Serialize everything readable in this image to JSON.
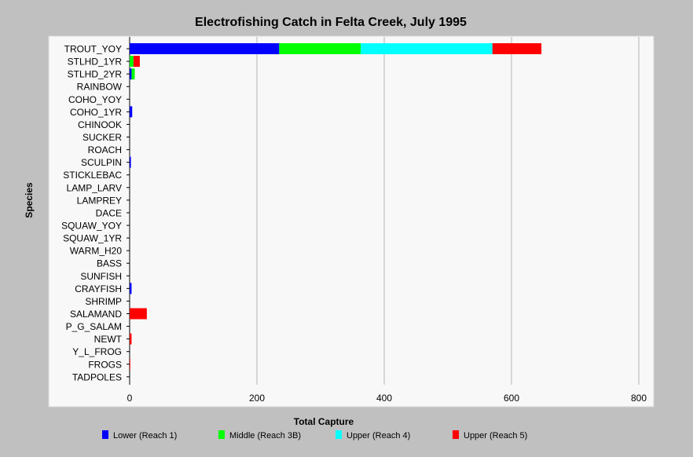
{
  "chart_data": {
    "type": "bar",
    "orientation": "horizontal",
    "stacked": true,
    "title": "Electrofishing Catch in Felta Creek, July 1995",
    "xlabel": "Total Capture",
    "ylabel": "Species",
    "xlim": [
      0,
      800
    ],
    "xticks": [
      "0",
      "200",
      "400",
      "600",
      "800"
    ],
    "grid": true,
    "legend_position": "bottom",
    "categories": [
      "TROUT_YOY",
      "STLHD_1YR",
      "STLHD_2YR",
      "RAINBOW",
      "COHO_YOY",
      "COHO_1YR",
      "CHINOOK",
      "SUCKER",
      "ROACH",
      "SCULPIN",
      "STICKLEBAC",
      "LAMP_LARV",
      "LAMPREY",
      "DACE",
      "SQUAW_YOY",
      "SQUAW_1YR",
      "WARM_H20",
      "BASS",
      "SUNFISH",
      "CRAYFISH",
      "SHRIMP",
      "SALAMAND",
      "P_G_SALAM",
      "NEWT",
      "Y_L_FROG",
      "FROGS",
      "TADPOLES"
    ],
    "series": [
      {
        "name": "Lower (Reach 1)",
        "color": "#0000ff",
        "values": [
          235,
          0,
          3,
          0,
          0,
          4,
          0,
          0,
          0,
          2,
          0,
          0,
          0,
          0,
          0,
          0,
          0,
          0,
          0,
          3,
          0,
          0,
          0,
          0,
          0,
          0,
          0
        ]
      },
      {
        "name": "Middle (Reach 3B)",
        "color": "#00ff00",
        "values": [
          128,
          6,
          5,
          0,
          0,
          0,
          0,
          0,
          0,
          0,
          0,
          0,
          0,
          0,
          0,
          0,
          0,
          0,
          0,
          0,
          0,
          0,
          0,
          0,
          0,
          0,
          0
        ]
      },
      {
        "name": "Upper (Reach 4)",
        "color": "#00ffff",
        "values": [
          207,
          0,
          0,
          0,
          0,
          0,
          0,
          0,
          0,
          0,
          0,
          0,
          0,
          0,
          0,
          0,
          0,
          0,
          0,
          0,
          0,
          0,
          0,
          0,
          0,
          0,
          0
        ]
      },
      {
        "name": "Upper (Reach 5)",
        "color": "#ff0000",
        "values": [
          77,
          10,
          0,
          0,
          0,
          0,
          0,
          0,
          0,
          0,
          0,
          0,
          0,
          0,
          0,
          0,
          0,
          0,
          0,
          0,
          0,
          27,
          0,
          3,
          0,
          1,
          0
        ]
      }
    ]
  },
  "colors": {
    "page_background": "#c0c0c0",
    "plot_background": "#f8f8f8",
    "gridline": "#b4b4b4"
  }
}
